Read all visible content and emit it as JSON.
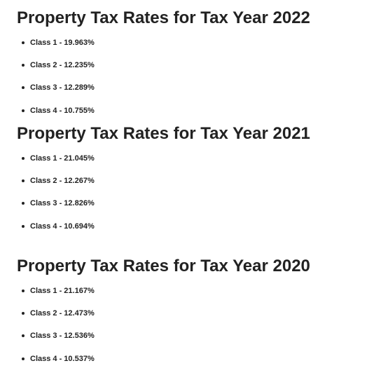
{
  "sections": [
    {
      "title": "Property Tax Rates for Tax Year 2022",
      "rates": [
        "Class 1 - 19.963%",
        "Class 2 - 12.235%",
        "Class 3 - 12.289%",
        "Class 4 - 10.755%"
      ]
    },
    {
      "title": "Property Tax Rates for Tax Year 2021",
      "rates": [
        "Class 1 - 21.045%",
        "Class 2 - 12.267%",
        "Class 3 - 12.826%",
        "Class 4 - 10.694%"
      ]
    },
    {
      "title": "Property Tax Rates for Tax Year 2020",
      "rates": [
        "Class 1 - 21.167%",
        "Class 2 - 12.473%",
        "Class 3 - 12.536%",
        "Class 4 - 10.537%"
      ]
    }
  ]
}
